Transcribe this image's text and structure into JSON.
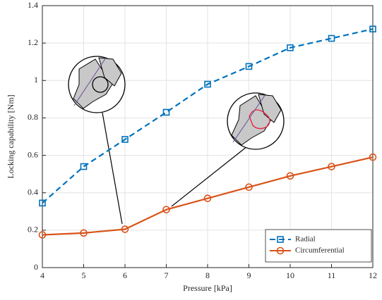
{
  "chart_data": {
    "type": "line",
    "x_label": "Pressure [kPa]",
    "y_label": "Locking capability [Nm]",
    "x": [
      4,
      5,
      6,
      7,
      8,
      9,
      10,
      11,
      12
    ],
    "series": [
      {
        "name": "Radial",
        "color": "#0072bd",
        "line_style": "dashed",
        "marker": "square",
        "values": [
          0.345,
          0.54,
          0.685,
          0.83,
          0.98,
          1.075,
          1.175,
          1.225,
          1.275
        ]
      },
      {
        "name": "Circumferential",
        "color": "#d95319",
        "line_style": "solid",
        "marker": "circle",
        "values": [
          0.175,
          0.185,
          0.205,
          0.31,
          0.37,
          0.43,
          0.49,
          0.54,
          0.59
        ]
      }
    ],
    "xlim": [
      4,
      12
    ],
    "xticks": [
      4,
      5,
      6,
      7,
      8,
      9,
      10,
      11,
      12
    ],
    "ylim": [
      0,
      1.4
    ],
    "yticks": [
      0,
      0.2,
      0.4,
      0.6,
      0.8,
      1,
      1.2,
      1.4
    ],
    "grid": true,
    "legend": "lower right"
  }
}
